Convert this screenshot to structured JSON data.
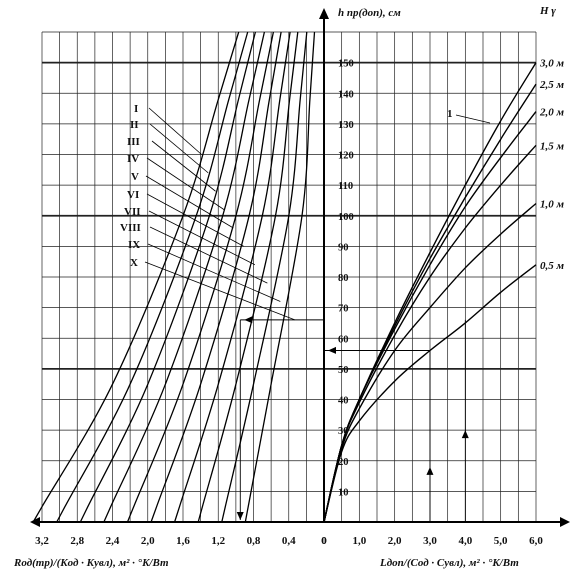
{
  "chart_data": {
    "type": "nomogram",
    "y_axis": {
      "label": "h пр(доп), см",
      "range": [
        0,
        160
      ],
      "ticks": [
        10,
        20,
        30,
        40,
        50,
        60,
        70,
        80,
        90,
        100,
        110,
        120,
        130,
        140,
        150
      ]
    },
    "left_panel": {
      "xlabel": "Rод(тр)/(Kод · Kувл), м² · °K/Вт",
      "x_range": [
        0,
        3.2
      ],
      "direction": "leftward",
      "tick_labels": [
        "3,2",
        "2,8",
        "2,4",
        "2,0",
        "1,6",
        "1,2",
        "0,8",
        "0,4",
        "0"
      ],
      "tick_values": [
        3.2,
        2.8,
        2.4,
        2.0,
        1.6,
        1.2,
        0.8,
        0.4,
        0
      ],
      "curve_labels": [
        "I",
        "II",
        "III",
        "IV",
        "V",
        "VI",
        "VII",
        "VIII",
        "IX",
        "X"
      ],
      "curves": [
        {
          "name": "I",
          "points": [
            [
              3.2,
              5
            ],
            [
              2.4,
              45
            ],
            [
              1.6,
              100
            ],
            [
              1.2,
              138
            ]
          ]
        },
        {
          "name": "II",
          "points": [
            [
              2.94,
              5
            ],
            [
              2.2,
              45
            ],
            [
              1.45,
              100
            ],
            [
              1.08,
              138
            ]
          ]
        },
        {
          "name": "III",
          "points": [
            [
              2.68,
              5
            ],
            [
              2.0,
              45
            ],
            [
              1.3,
              100
            ],
            [
              0.97,
              138
            ]
          ]
        },
        {
          "name": "IV",
          "points": [
            [
              2.42,
              5
            ],
            [
              1.8,
              45
            ],
            [
              1.15,
              100
            ],
            [
              0.85,
              138
            ]
          ]
        },
        {
          "name": "V",
          "points": [
            [
              2.16,
              5
            ],
            [
              1.6,
              45
            ],
            [
              1.0,
              100
            ],
            [
              0.73,
              138
            ]
          ]
        },
        {
          "name": "VI",
          "points": [
            [
              1.9,
              5
            ],
            [
              1.4,
              45
            ],
            [
              0.85,
              100
            ],
            [
              0.62,
              138
            ]
          ]
        },
        {
          "name": "VII",
          "points": [
            [
              1.64,
              5
            ],
            [
              1.2,
              45
            ],
            [
              0.7,
              100
            ],
            [
              0.5,
              138
            ]
          ]
        },
        {
          "name": "VIII",
          "points": [
            [
              1.38,
              5
            ],
            [
              1.0,
              45
            ],
            [
              0.55,
              100
            ],
            [
              0.39,
              138
            ]
          ]
        },
        {
          "name": "IX",
          "points": [
            [
              1.12,
              5
            ],
            [
              0.8,
              45
            ],
            [
              0.4,
              100
            ],
            [
              0.27,
              138
            ]
          ]
        },
        {
          "name": "X",
          "points": [
            [
              0.86,
              5
            ],
            [
              0.6,
              45
            ],
            [
              0.25,
              100
            ],
            [
              0.16,
              138
            ]
          ]
        }
      ],
      "example_arrows": [
        {
          "x": 0.95,
          "from_y": 66,
          "to_y": 0
        },
        {
          "from_x": 0.0,
          "to_x": 0.95,
          "y": 66
        }
      ]
    },
    "right_panel": {
      "xlabel": "Lдоп/(Cод · Cувл), м² · °K/Вт",
      "x_range": [
        0,
        6.0
      ],
      "tick_labels": [
        "1,0",
        "2,0",
        "3,0",
        "4,0",
        "5,0",
        "6,0"
      ],
      "tick_values": [
        1.0,
        2.0,
        3.0,
        4.0,
        5.0,
        6.0
      ],
      "series_title": "H γ",
      "curve_marker": "1",
      "series": [
        {
          "name": "0,5 м",
          "points": [
            [
              0,
              0
            ],
            [
              0.5,
              23
            ],
            [
              1.0,
              33
            ],
            [
              2.0,
              46
            ],
            [
              3.0,
              56
            ],
            [
              4.0,
              65
            ],
            [
              5.0,
              75
            ],
            [
              6.0,
              84
            ]
          ]
        },
        {
          "name": "1,0 м",
          "points": [
            [
              0,
              0
            ],
            [
              0.5,
              24
            ],
            [
              1.0,
              37
            ],
            [
              2.0,
              56
            ],
            [
              3.0,
              70
            ],
            [
              4.0,
              83
            ],
            [
              5.0,
              94
            ],
            [
              6.0,
              104
            ]
          ]
        },
        {
          "name": "1,5 м",
          "points": [
            [
              0,
              0
            ],
            [
              0.5,
              25
            ],
            [
              1.0,
              39
            ],
            [
              2.0,
              61
            ],
            [
              3.0,
              80
            ],
            [
              4.0,
              96
            ],
            [
              5.0,
              110
            ],
            [
              6.0,
              123
            ]
          ]
        },
        {
          "name": "2,0 м",
          "points": [
            [
              0,
              0
            ],
            [
              0.5,
              25
            ],
            [
              1.0,
              40
            ],
            [
              2.0,
              63
            ],
            [
              3.0,
              84
            ],
            [
              4.0,
              103
            ],
            [
              5.0,
              119
            ],
            [
              6.0,
              134
            ]
          ]
        },
        {
          "name": "2,5 м",
          "points": [
            [
              0,
              0
            ],
            [
              0.5,
              25
            ],
            [
              1.0,
              40
            ],
            [
              2.0,
              64
            ],
            [
              3.0,
              86
            ],
            [
              4.0,
              106
            ],
            [
              5.0,
              125
            ],
            [
              6.0,
              143
            ]
          ]
        },
        {
          "name": "3,0 м",
          "points": [
            [
              0,
              0
            ],
            [
              0.5,
              25
            ],
            [
              1.0,
              40
            ],
            [
              2.0,
              65
            ],
            [
              3.0,
              88
            ],
            [
              4.0,
              110
            ],
            [
              5.0,
              131
            ],
            [
              6.0,
              150
            ]
          ]
        }
      ],
      "example_arrows": [
        {
          "x": 3.0,
          "from_y": 0,
          "to_y": 56
        },
        {
          "x": 4.0,
          "from_y": 0,
          "to_y": 66
        },
        {
          "from_x": 3.0,
          "to_x": 0.0,
          "y": 56
        }
      ]
    }
  }
}
